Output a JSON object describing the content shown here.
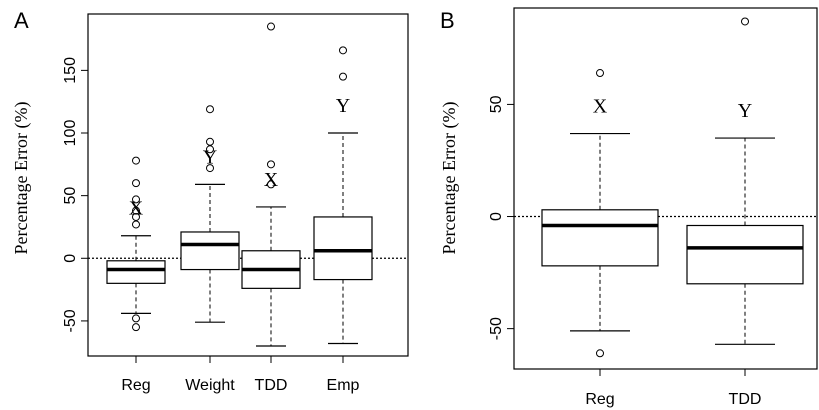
{
  "chart_data": [
    {
      "type": "box",
      "panel_label": "A",
      "ylabel": "Percentage Error (%)",
      "xlabel": "",
      "ylim": [
        -78,
        195
      ],
      "yticks": [
        -50,
        0,
        50,
        100,
        150
      ],
      "reference_line": {
        "y": 0,
        "style": "dotted"
      },
      "categories": [
        "Reg",
        "Weight",
        "TDD",
        "Emp"
      ],
      "boxes": [
        {
          "label": "Reg",
          "whisker_low": -44,
          "q1": -20,
          "median": -9,
          "q3": -2,
          "whisker_high": 18,
          "outliers": [
            -55,
            -48,
            27,
            33,
            38,
            47,
            60,
            78
          ],
          "annotation": "X"
        },
        {
          "label": "Weight",
          "whisker_low": -51,
          "q1": -9,
          "median": 11,
          "q3": 21,
          "whisker_high": 59,
          "outliers": [
            72,
            87,
            93,
            119
          ],
          "annotation": "Y"
        },
        {
          "label": "TDD",
          "whisker_low": -70,
          "q1": -24,
          "median": -9,
          "q3": 6,
          "whisker_high": 41,
          "outliers": [
            59,
            75,
            185
          ],
          "annotation": "X"
        },
        {
          "label": "Emp",
          "whisker_low": -68,
          "q1": -17,
          "median": 6,
          "q3": 33,
          "whisker_high": 100,
          "outliers": [
            145,
            166
          ],
          "annotation": "Y"
        }
      ]
    },
    {
      "type": "box",
      "panel_label": "B",
      "ylabel": "Percentage Error (%)",
      "xlabel": "",
      "ylim": [
        -68,
        93
      ],
      "yticks": [
        -50,
        0,
        50
      ],
      "reference_line": {
        "y": 0,
        "style": "dotted"
      },
      "categories": [
        "Reg",
        "TDD"
      ],
      "boxes": [
        {
          "label": "Reg",
          "whisker_low": -51,
          "q1": -22,
          "median": -4,
          "q3": 3,
          "whisker_high": 37,
          "outliers": [
            -61,
            64
          ],
          "annotation": "X"
        },
        {
          "label": "TDD",
          "whisker_low": -57,
          "q1": -30,
          "median": -14,
          "q3": -4,
          "whisker_high": 35,
          "outliers": [
            87
          ],
          "annotation": "Y"
        }
      ]
    }
  ]
}
